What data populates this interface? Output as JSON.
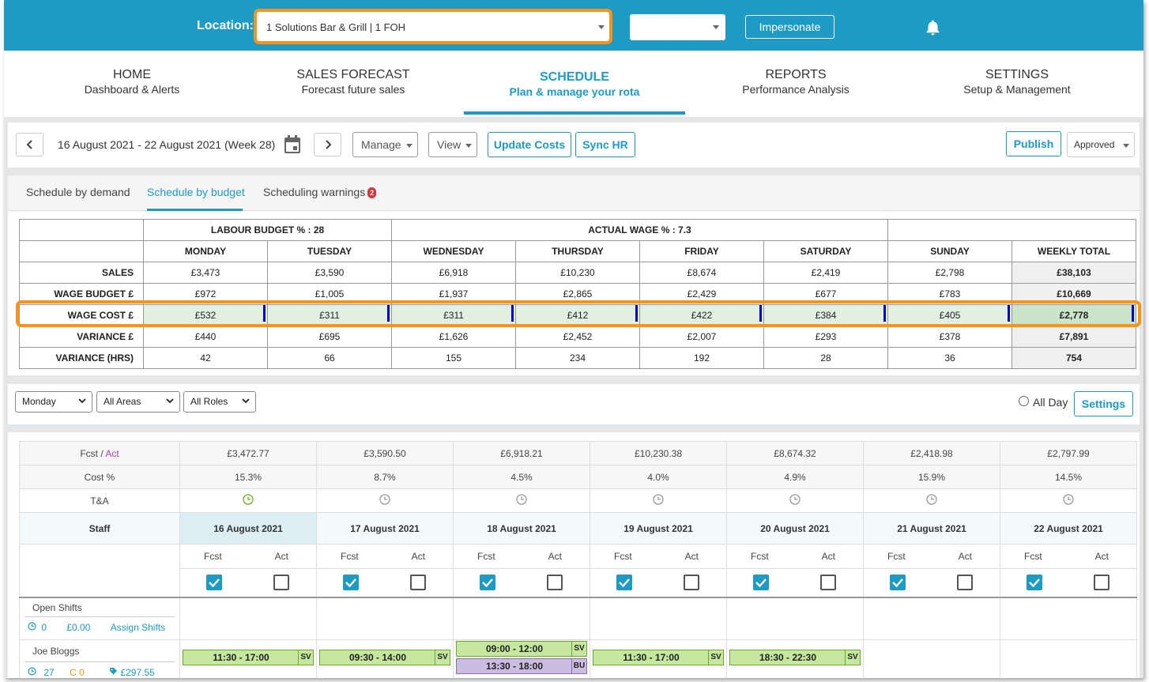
{
  "topbar": {
    "location_label": "Location:",
    "location_value": "1 Solutions Bar & Grill | 1 FOH",
    "second_select_value": "",
    "impersonate_label": "Impersonate",
    "bell_icon": "bell-icon"
  },
  "nav": [
    {
      "title": "HOME",
      "subtitle": "Dashboard & Alerts"
    },
    {
      "title": "SALES FORECAST",
      "subtitle": "Forecast future sales"
    },
    {
      "title": "SCHEDULE",
      "subtitle": "Plan & manage your rota",
      "active": true
    },
    {
      "title": "REPORTS",
      "subtitle": "Performance Analysis"
    },
    {
      "title": "SETTINGS",
      "subtitle": "Setup & Management"
    }
  ],
  "toolbar": {
    "date_range": "16 August 2021 - 22 August 2021 (Week 28)",
    "manage_label": "Manage",
    "view_label": "View",
    "update_costs_label": "Update Costs",
    "sync_hr_label": "Sync HR",
    "publish_label": "Publish",
    "status_value": "Approved"
  },
  "tabs": {
    "items": [
      "Schedule by demand",
      "Schedule by budget",
      "Scheduling warnings"
    ],
    "active_index": 1,
    "warnings_count": "2"
  },
  "budget": {
    "labour_budget": "LABOUR BUDGET % : 28",
    "actual_wage": "ACTUAL WAGE % : 7.3",
    "days": [
      "MONDAY",
      "TUESDAY",
      "WEDNESDAY",
      "THURSDAY",
      "FRIDAY",
      "SATURDAY",
      "SUNDAY",
      "WEEKLY TOTAL"
    ],
    "rows": [
      {
        "label": "SALES",
        "values": [
          "£3,473",
          "£3,590",
          "£6,918",
          "£10,230",
          "£8,674",
          "£2,419",
          "£2,798",
          "£38,103"
        ]
      },
      {
        "label": "WAGE BUDGET £",
        "values": [
          "£972",
          "£1,005",
          "£1,937",
          "£2,865",
          "£2,429",
          "£677",
          "£783",
          "£10,669"
        ]
      },
      {
        "label": "WAGE COST £",
        "values": [
          "£532",
          "£311",
          "£311",
          "£412",
          "£422",
          "£384",
          "£405",
          "£2,778"
        ]
      },
      {
        "label": "VARIANCE £",
        "values": [
          "£440",
          "£695",
          "£1,626",
          "£2,452",
          "£2,007",
          "£293",
          "£378",
          "£7,891"
        ]
      },
      {
        "label": "VARIANCE (HRS)",
        "values": [
          "42",
          "66",
          "155",
          "234",
          "192",
          "28",
          "36",
          "754"
        ]
      }
    ]
  },
  "filters": {
    "day_value": "Monday",
    "areas_value": "All Areas",
    "roles_value": "All Roles",
    "all_day_label": "All Day",
    "settings_label": "Settings"
  },
  "schedule": {
    "fcst_label": "Fcst",
    "act_label": "Act",
    "cost_label": "Cost %",
    "ta_label": "T&A",
    "staff_label": "Staff",
    "forecasts": [
      "£3,472.77",
      "£3,590.50",
      "£6,918.21",
      "£10,230.38",
      "£8,674.32",
      "£2,418.98",
      "£2,797.99"
    ],
    "cost_pct": [
      "15.3%",
      "8.7%",
      "4.5%",
      "4.0%",
      "4.9%",
      "15.9%",
      "14.5%"
    ],
    "dates": [
      "16 August 2021",
      "17 August 2021",
      "18 August 2021",
      "19 August 2021",
      "20 August 2021",
      "21 August 2021",
      "22 August 2021"
    ],
    "sub_fcst": "Fcst",
    "sub_act": "Act",
    "open_shifts": {
      "name": "Open Shifts",
      "count": "0",
      "amount": "£0.00",
      "assign_label": "Assign Shifts"
    },
    "staff": [
      {
        "name": "Joe Bloggs",
        "hours": "27",
        "c": "C",
        "c_value": "0",
        "pay": "£297.55",
        "shifts": [
          {
            "day": 0,
            "time": "11:30 - 17:00",
            "tag": "SV"
          },
          {
            "day": 1,
            "time": "09:30 - 14:00",
            "tag": "SV"
          },
          {
            "day": 2,
            "time": "09:00 - 12:00",
            "tag": "SV"
          },
          {
            "day": 2,
            "time": "13:30 - 18:00",
            "tag": "BU"
          },
          {
            "day": 3,
            "time": "11:30 - 17:00",
            "tag": "SV"
          },
          {
            "day": 4,
            "time": "18:30 - 22:30",
            "tag": "SV"
          }
        ]
      }
    ]
  },
  "colors": {
    "accent": "#1e9bc4",
    "highlight": "#f7941d",
    "shift_sv": "#c5e79f",
    "shift_bu": "#cbbde0",
    "act_purple": "#b03fb0"
  }
}
